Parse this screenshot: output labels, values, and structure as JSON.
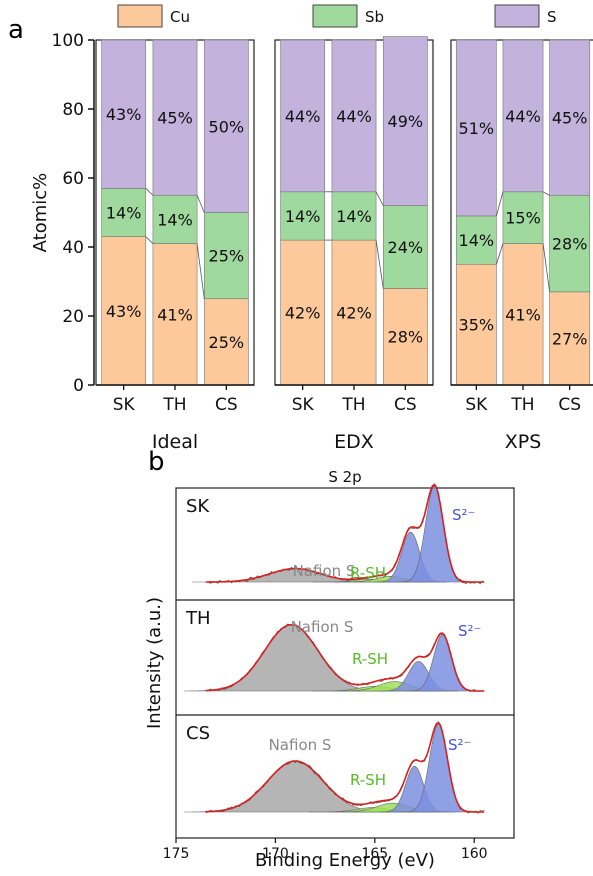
{
  "panel_a_letter": "a",
  "panel_b_letter": "b",
  "colors": {
    "Cu": "#fdc99a",
    "Sb": "#9fd99e",
    "S": "#c2b2dc",
    "envelope": "#d62020",
    "raw": "#555555",
    "nafion_fill": "#a8a8a8",
    "rsh_fill": "#9ee05a",
    "s2_fill": "#7d8fe0",
    "label_gray": "#888888",
    "label_green": "#5aba2a",
    "label_blue": "#4455dd"
  },
  "chart_data": [
    {
      "type": "bar",
      "stacked": true,
      "ylabel": "Atomic%",
      "ylim": [
        0,
        100
      ],
      "yticks": [
        0,
        20,
        40,
        60,
        80,
        100
      ],
      "legend": [
        "Cu",
        "Sb",
        "S"
      ],
      "groups": [
        {
          "name": "Ideal",
          "categories": [
            "SK",
            "TH",
            "CS"
          ],
          "series": [
            {
              "name": "Cu",
              "values": [
                43,
                41,
                25
              ],
              "labels": [
                "43%",
                "41%",
                "25%"
              ]
            },
            {
              "name": "Sb",
              "values": [
                14,
                14,
                25
              ],
              "labels": [
                "14%",
                "14%",
                "25%"
              ]
            },
            {
              "name": "S",
              "values": [
                43,
                45,
                50
              ],
              "labels": [
                "43%",
                "45%",
                "50%"
              ]
            }
          ]
        },
        {
          "name": "EDX",
          "categories": [
            "SK",
            "TH",
            "CS"
          ],
          "series": [
            {
              "name": "Cu",
              "values": [
                42,
                42,
                28
              ],
              "labels": [
                "42%",
                "42%",
                "28%"
              ]
            },
            {
              "name": "Sb",
              "values": [
                14,
                14,
                24
              ],
              "labels": [
                "14%",
                "14%",
                "24%"
              ]
            },
            {
              "name": "S",
              "values": [
                44,
                44,
                49
              ],
              "labels": [
                "44%",
                "44%",
                "49%"
              ]
            }
          ]
        },
        {
          "name": "XPS",
          "categories": [
            "SK",
            "TH",
            "CS"
          ],
          "series": [
            {
              "name": "Cu",
              "values": [
                35,
                41,
                27
              ],
              "labels": [
                "35%",
                "41%",
                "27%"
              ]
            },
            {
              "name": "Sb",
              "values": [
                14,
                15,
                28
              ],
              "labels": [
                "14%",
                "15%",
                "28%"
              ]
            },
            {
              "name": "S",
              "values": [
                51,
                44,
                45
              ],
              "labels": [
                "51%",
                "44%",
                "45%"
              ]
            }
          ]
        }
      ]
    },
    {
      "type": "line",
      "title": "S 2p",
      "xlabel": "Binding Energy (eV)",
      "ylabel": "Intensity (a.u.)",
      "xlim": [
        175,
        158
      ],
      "xticks": [
        175,
        170,
        165,
        160
      ],
      "panels": [
        {
          "name": "SK",
          "peaks": [
            {
              "label": "Nafion S",
              "center": 169.0,
              "amp": 0.14,
              "width": 1.3
            },
            {
              "label": "R-SH",
              "center": 164.2,
              "amp": 0.06,
              "width": 0.7
            },
            {
              "label": "R-SH",
              "center": 165.3,
              "amp": 0.03,
              "width": 0.7
            },
            {
              "label": "S²⁻",
              "center": 162.0,
              "amp": 1.0,
              "width": 0.45
            },
            {
              "label": "S²⁻",
              "center": 163.2,
              "amp": 0.52,
              "width": 0.45
            }
          ]
        },
        {
          "name": "TH",
          "peaks": [
            {
              "label": "Nafion S",
              "center": 169.2,
              "amp": 0.85,
              "width": 1.35
            },
            {
              "label": "R-SH",
              "center": 164.0,
              "amp": 0.12,
              "width": 0.8
            },
            {
              "label": "R-SH",
              "center": 165.0,
              "amp": 0.06,
              "width": 0.8
            },
            {
              "label": "S²⁻",
              "center": 161.6,
              "amp": 0.72,
              "width": 0.45
            },
            {
              "label": "S²⁻",
              "center": 162.8,
              "amp": 0.38,
              "width": 0.5
            }
          ]
        },
        {
          "name": "CS",
          "peaks": [
            {
              "label": "Nafion S",
              "center": 169.0,
              "amp": 0.58,
              "width": 1.4
            },
            {
              "label": "R-SH",
              "center": 164.1,
              "amp": 0.1,
              "width": 0.8
            },
            {
              "label": "R-SH",
              "center": 165.1,
              "amp": 0.05,
              "width": 0.8
            },
            {
              "label": "S²⁻",
              "center": 161.8,
              "amp": 1.0,
              "width": 0.45
            },
            {
              "label": "S²⁻",
              "center": 163.0,
              "amp": 0.52,
              "width": 0.45
            }
          ]
        }
      ],
      "annotations": {
        "nafion": "Nafion S",
        "rsh": "R-SH",
        "s2": "S²⁻"
      }
    }
  ]
}
